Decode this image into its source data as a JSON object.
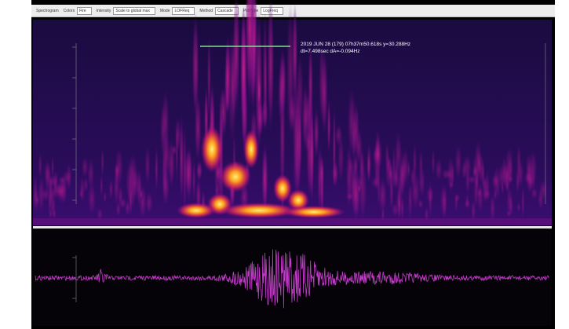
{
  "toolbar": {
    "items": [
      {
        "label": "Spectrogram",
        "value": null
      },
      {
        "label": "Colors",
        "value": "Fire"
      },
      {
        "label": "Intensity",
        "value": "Scale to global max"
      },
      {
        "label": "Mode",
        "value": "LOFReq"
      },
      {
        "label": "Method",
        "value": "Cascade"
      },
      {
        "label": "PlotType",
        "value": "LogFreq"
      }
    ]
  },
  "annotation": {
    "line1": "2019 JUN 28 (179)  07h37m50.618s  y=30.288Hz",
    "line2": "dt=7.498sec  dA=-0.094Hz"
  }
}
